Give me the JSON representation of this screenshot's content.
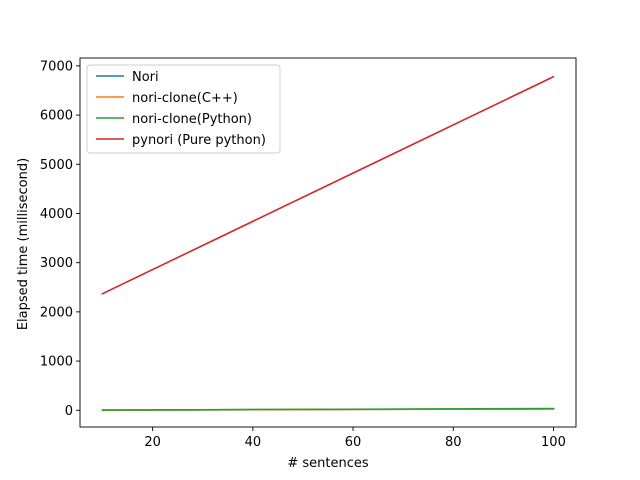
{
  "chart_data": {
    "type": "line",
    "title": "",
    "xlabel": "# sentences",
    "ylabel": "Elapsed time (millisecond)",
    "xlim": [
      5.5,
      104.5
    ],
    "ylim": [
      -340,
      7160
    ],
    "xticks": [
      20,
      40,
      60,
      80,
      100
    ],
    "yticks": [
      0,
      1000,
      2000,
      3000,
      4000,
      5000,
      6000,
      7000
    ],
    "grid": false,
    "legend_position": "top-left",
    "x": [
      10,
      100
    ],
    "series": [
      {
        "name": "Nori",
        "color": "#1f77b4",
        "values": [
          3,
          30
        ]
      },
      {
        "name": "nori-clone(C++)",
        "color": "#ff7f0e",
        "values": [
          3,
          28
        ]
      },
      {
        "name": "nori-clone(Python)",
        "color": "#2ca02c",
        "values": [
          4,
          35
        ]
      },
      {
        "name": "pynori (Pure python)",
        "color": "#d62728",
        "values": [
          2370,
          6780
        ]
      }
    ]
  }
}
